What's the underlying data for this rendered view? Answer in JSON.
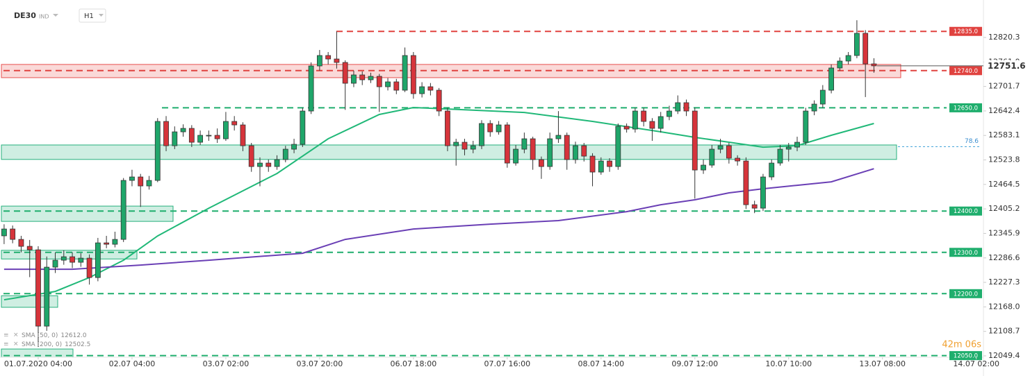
{
  "header": {
    "symbol": "DE30",
    "market": "IND",
    "interval": "H1"
  },
  "chart_data": {
    "type": "candlestick",
    "categories": [
      null,
      null,
      null,
      null,
      "01.07.2020 04:00",
      null,
      null,
      null,
      null,
      null,
      null,
      null,
      null,
      null,
      null,
      "02.07 04:00",
      null,
      null,
      null,
      null,
      null,
      null,
      null,
      null,
      null,
      null,
      "03.07 02:00",
      null,
      null,
      null,
      null,
      null,
      null,
      null,
      null,
      null,
      null,
      "03.07 20:00",
      null,
      null,
      null,
      null,
      null,
      null,
      null,
      null,
      null,
      null,
      "06.07 18:00",
      null,
      null,
      null,
      null,
      null,
      null,
      null,
      null,
      null,
      null,
      "07.07 16:00",
      null,
      null,
      null,
      null,
      null,
      null,
      null,
      null,
      null,
      null,
      "08.07 14:00",
      null,
      null,
      null,
      null,
      null,
      null,
      null,
      null,
      null,
      null,
      "09.07 12:00",
      null,
      null,
      null,
      null,
      null,
      null,
      null,
      null,
      null,
      null,
      "10.07 10:00",
      null,
      null,
      null,
      null,
      null,
      null,
      null,
      null,
      null,
      null,
      "13.07 08:00",
      null,
      null,
      null,
      null,
      null,
      null,
      null,
      null,
      null,
      null,
      "14.07 02:00"
    ],
    "candles": [
      [
        12340,
        12368,
        12320,
        12356.6
      ],
      [
        12356.6,
        12365,
        12322,
        12331.4
      ],
      [
        12331.4,
        12340,
        12300,
        12314.6
      ],
      [
        12314.6,
        12330,
        12240,
        12306.2
      ],
      [
        12306.2,
        12315,
        12071,
        12121.4
      ],
      [
        12121.4,
        12290,
        12110,
        12264.2
      ],
      [
        12264.2,
        12300,
        12250,
        12281.0
      ],
      [
        12281.0,
        12305,
        12270,
        12289.4
      ],
      [
        12289.4,
        12300,
        12262,
        12276.0
      ],
      [
        12276.0,
        12298,
        12265,
        12286.0
      ],
      [
        12286.0,
        12295,
        12222,
        12239.0
      ],
      [
        12239.0,
        12335,
        12230,
        12323.0
      ],
      [
        12323.0,
        12340,
        12310,
        12319.6
      ],
      [
        12319.6,
        12350,
        12312,
        12331.4
      ],
      [
        12331.4,
        12480,
        12325,
        12474.2
      ],
      [
        12474.2,
        12500,
        12460,
        12482.6
      ],
      [
        12482.6,
        12490,
        12410,
        12460.8
      ],
      [
        12460.8,
        12485,
        12452,
        12474.2
      ],
      [
        12474.2,
        12625,
        12470,
        12617.0
      ],
      [
        12617.0,
        12630,
        12545,
        12558.2
      ],
      [
        12558.2,
        12605,
        12550,
        12591.8
      ],
      [
        12591.8,
        12610,
        12580,
        12600.2
      ],
      [
        12600.2,
        12608,
        12555,
        12566.6
      ],
      [
        12566.6,
        12595,
        12560,
        12583.4
      ],
      [
        12583.4,
        12595,
        12570,
        12583.4
      ],
      [
        12583.4,
        12600,
        12565,
        12575.0
      ],
      [
        12575.0,
        12640,
        12570,
        12617.0
      ],
      [
        12617.0,
        12630,
        12595,
        12608.6
      ],
      [
        12608.6,
        12615,
        12545,
        12558.2
      ],
      [
        12558.2,
        12565,
        12495,
        12507.8
      ],
      [
        12507.8,
        12530,
        12460,
        12516.2
      ],
      [
        12516.2,
        12525,
        12495,
        12507.8
      ],
      [
        12507.8,
        12535,
        12500,
        12524.6
      ],
      [
        12524.6,
        12558,
        12518,
        12549.8
      ],
      [
        12549.8,
        12575,
        12540,
        12561.6
      ],
      [
        12561.6,
        12650,
        12555,
        12642.2
      ],
      [
        12642.2,
        12760,
        12635,
        12751.4
      ],
      [
        12751.4,
        12790,
        12740,
        12776.6
      ],
      [
        12776.6,
        12785,
        12755,
        12768.2
      ],
      [
        12768.2,
        12835,
        12745,
        12759.8
      ],
      [
        12759.8,
        12765,
        12645,
        12709.4
      ],
      [
        12709.4,
        12740,
        12700,
        12729.6
      ],
      [
        12729.6,
        12738,
        12705,
        12717.8
      ],
      [
        12717.8,
        12735,
        12710,
        12726.2
      ],
      [
        12726.2,
        12732,
        12640,
        12701.0
      ],
      [
        12701.0,
        12722,
        12692,
        12712.8
      ],
      [
        12712.8,
        12720,
        12683,
        12692.6
      ],
      [
        12692.6,
        12796,
        12688,
        12776.6
      ],
      [
        12776.6,
        12785,
        12672,
        12684.2
      ],
      [
        12684.2,
        12712,
        12675,
        12701.0
      ],
      [
        12701.0,
        12710,
        12680,
        12692.6
      ],
      [
        12692.6,
        12698,
        12630,
        12642.2
      ],
      [
        12642.2,
        12650,
        12545,
        12558.2
      ],
      [
        12558.2,
        12575,
        12510,
        12566.6
      ],
      [
        12566.6,
        12575,
        12535,
        12549.8
      ],
      [
        12549.8,
        12570,
        12540,
        12558.2
      ],
      [
        12558.2,
        12620,
        12550,
        12612.0
      ],
      [
        12612.0,
        12620,
        12580,
        12591.8
      ],
      [
        12591.8,
        12618,
        12585,
        12608.6
      ],
      [
        12608.6,
        12615,
        12505,
        12516.2
      ],
      [
        12516.2,
        12560,
        12510,
        12549.8
      ],
      [
        12549.8,
        12590,
        12540,
        12575.0
      ],
      [
        12575.0,
        12580,
        12500,
        12524.6
      ],
      [
        12524.6,
        12532,
        12478,
        12507.8
      ],
      [
        12507.8,
        12590,
        12500,
        12575.0
      ],
      [
        12575.0,
        12642,
        12565,
        12583.4
      ],
      [
        12583.4,
        12590,
        12500,
        12524.6
      ],
      [
        12524.6,
        12568,
        12515,
        12558.2
      ],
      [
        12558.2,
        12565,
        12520,
        12533.0
      ],
      [
        12533.0,
        12540,
        12460,
        12494.4
      ],
      [
        12494.4,
        12530,
        12488,
        12521.2
      ],
      [
        12521.2,
        12528,
        12495,
        12507.8
      ],
      [
        12507.8,
        12612,
        12500,
        12605.2
      ],
      [
        12605.2,
        12612,
        12590,
        12598.5
      ],
      [
        12598.5,
        12650,
        12590,
        12642.2
      ],
      [
        12642.2,
        12650,
        12605,
        12617.0
      ],
      [
        12617.0,
        12625,
        12570,
        12600.2
      ],
      [
        12600.2,
        12640,
        12590,
        12628.8
      ],
      [
        12628.8,
        12655,
        12620,
        12642.2
      ],
      [
        12642.2,
        12680,
        12635,
        12662.4
      ],
      [
        12662.4,
        12670,
        12630,
        12642.2
      ],
      [
        12642.2,
        12650,
        12430,
        12499.4
      ],
      [
        12499.4,
        12525,
        12490,
        12511.2
      ],
      [
        12511.2,
        12560,
        12505,
        12549.8
      ],
      [
        12549.8,
        12575,
        12540,
        12558.2
      ],
      [
        12558.2,
        12565,
        12515,
        12528.0
      ],
      [
        12528.0,
        12535,
        12510,
        12521.2
      ],
      [
        12521.2,
        12530,
        12405,
        12415.4
      ],
      [
        12415.4,
        12425,
        12395,
        12407.0
      ],
      [
        12407.0,
        12490,
        12400,
        12482.6
      ],
      [
        12482.6,
        12525,
        12475,
        12516.2
      ],
      [
        12516.2,
        12560,
        12510,
        12549.8
      ],
      [
        12549.8,
        12565,
        12520,
        12554.8
      ],
      [
        12554.8,
        12580,
        12545,
        12566.6
      ],
      [
        12566.6,
        12650,
        12560,
        12642.2
      ],
      [
        12642.2,
        12668,
        12632,
        12659.0
      ],
      [
        12659.0,
        12705,
        12650,
        12692.6
      ],
      [
        12692.6,
        12755,
        12685,
        12746.4
      ],
      [
        12746.4,
        12772,
        12740,
        12763.2
      ],
      [
        12763.2,
        12785,
        12755,
        12776.6
      ],
      [
        12776.6,
        12862,
        12770,
        12830.4
      ],
      [
        12830.4,
        12838,
        12676,
        12756.4
      ],
      [
        12756.4,
        12770,
        12735,
        12751.6
      ],
      null,
      null,
      null,
      null,
      null,
      null,
      null,
      null,
      null,
      null,
      null,
      null
    ],
    "up_color": "#1fa66a",
    "down_color": "#d6343b",
    "sma": [
      {
        "name": "SMA (50, 0)",
        "last_label": "12612.0",
        "color": "#20b878",
        "x": [
          0,
          6,
          10,
          14,
          18,
          24,
          32,
          38,
          44,
          48,
          52,
          61,
          69,
          77,
          81,
          85,
          89,
          93,
          97,
          102
        ],
        "values": [
          12185.2,
          12205.4,
          12239.0,
          12281.0,
          12339.8,
          12407.0,
          12491.0,
          12575.0,
          12633.8,
          12650.6,
          12647.2,
          12638.8,
          12617.0,
          12591.8,
          12578.4,
          12566.6,
          12554.8,
          12558.2,
          12583.4,
          12612.0
        ]
      },
      {
        "name": "SMA (200, 0)",
        "last_label": "12502.5",
        "color": "#6a3fb5",
        "x": [
          0,
          8,
          16,
          24,
          35,
          40,
          48,
          57,
          65,
          73,
          77,
          81,
          85,
          89,
          93,
          97,
          102
        ],
        "values": [
          12259.2,
          12259.2,
          12269.2,
          12281.0,
          12297.8,
          12331.4,
          12356.6,
          12368.4,
          12376.8,
          12398.6,
          12415.4,
          12427.2,
          12444.0,
          12454.0,
          12462.4,
          12470.8,
          12502.5
        ]
      }
    ],
    "levels": [
      {
        "value": 12835,
        "label": "12835.0",
        "color": "#e0423f"
      },
      {
        "value": 12740,
        "label": "12740.0",
        "color": "#e0423f"
      },
      {
        "value": 12650,
        "label": "12650.0",
        "color": "#1fae6d"
      },
      {
        "value": 12400,
        "label": "12400.0",
        "color": "#1fae6d"
      },
      {
        "value": 12300,
        "label": "12300.0",
        "color": "#1fae6d"
      },
      {
        "value": 12200,
        "label": "12200.0",
        "color": "#1fae6d"
      },
      {
        "value": 12050,
        "label": "12050.0",
        "color": "#1fae6d"
      }
    ],
    "zones": [
      {
        "range": [
          12723,
          12755
        ],
        "color": "#e8504f"
      },
      {
        "range": [
          12525,
          12560
        ],
        "color": "#25b07c"
      },
      {
        "range": [
          12375,
          12412
        ],
        "color": "#25b07c"
      },
      {
        "range": [
          12284,
          12305
        ],
        "color": "#25b07c"
      },
      {
        "range": [
          12167,
          12195
        ],
        "color": "#25b07c"
      },
      {
        "range": [
          12044,
          12066
        ],
        "color": "#25b07c"
      }
    ],
    "fib": {
      "label": "78.6",
      "value": 12556
    },
    "last_price": 12751.6,
    "timer": "42m 06s",
    "ylim": [
      12046.0,
      12911.0
    ],
    "yticks": [
      12820.3,
      {
        "value": 12761,
        "label": "12761.0"
      },
      12701.7,
      12642.4,
      12583.1,
      12523.8,
      12464.5,
      12405.2,
      12345.9,
      12286.6,
      12227.3,
      {
        "value": 12168,
        "label": "12168.0"
      },
      12108.7,
      12049.4
    ]
  }
}
